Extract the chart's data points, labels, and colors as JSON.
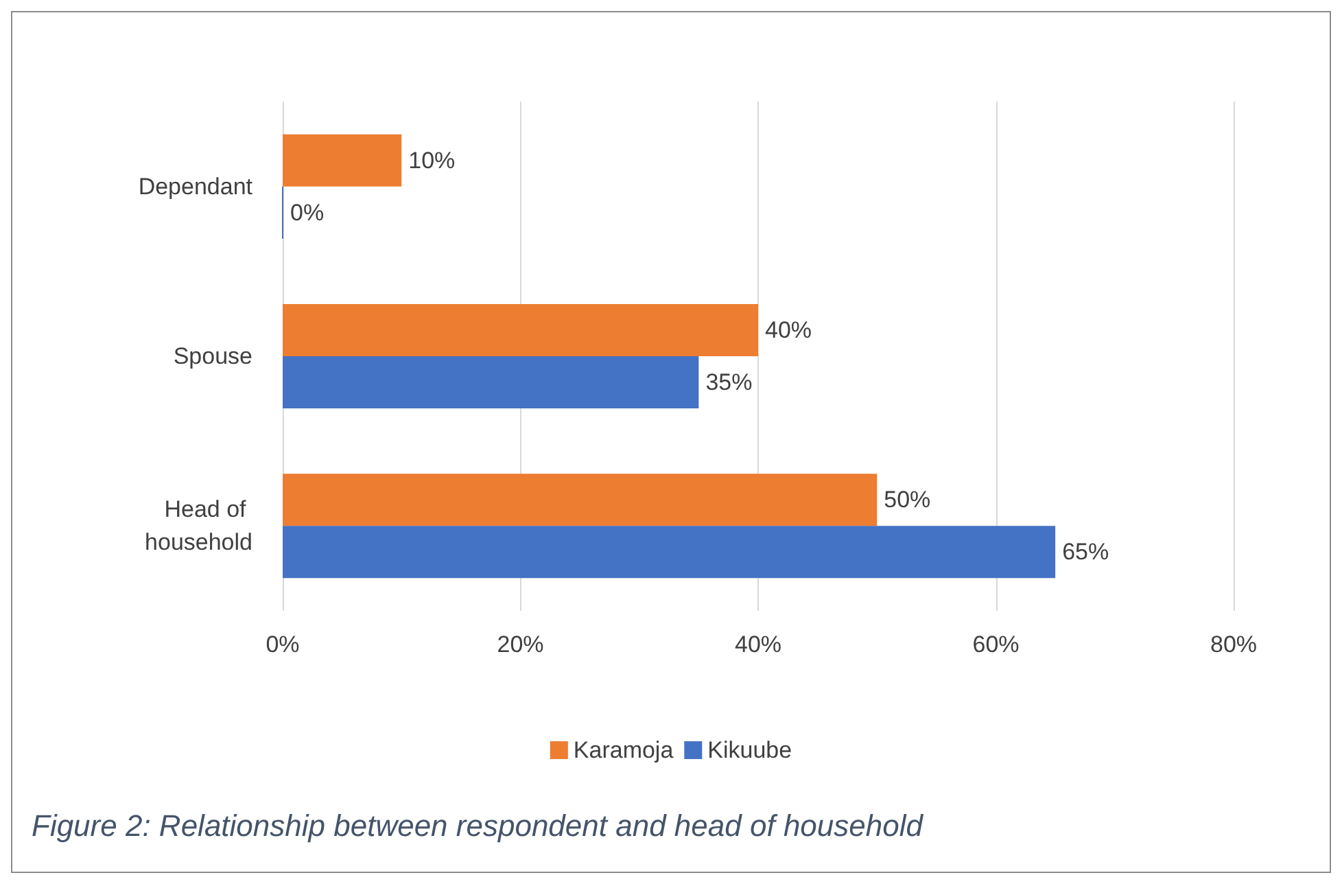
{
  "chart_data": {
    "type": "bar",
    "orientation": "horizontal",
    "categories": [
      "Dependant",
      "Spouse",
      "Head of household"
    ],
    "series": [
      {
        "name": "Karamoja",
        "color": "#ed7d31",
        "values": [
          10,
          40,
          50
        ],
        "value_labels": [
          "10%",
          "40%",
          "50%"
        ]
      },
      {
        "name": "Kikuube",
        "color": "#4472c4",
        "values": [
          0,
          35,
          65
        ],
        "value_labels": [
          "0%",
          "35%",
          "65%"
        ]
      }
    ],
    "xlim": [
      0,
      80
    ],
    "xticks": [
      {
        "value": 0,
        "label": "0%"
      },
      {
        "value": 20,
        "label": "20%"
      },
      {
        "value": 40,
        "label": "40%"
      },
      {
        "value": 60,
        "label": "60%"
      },
      {
        "value": 80,
        "label": "80%"
      }
    ],
    "grid": "x",
    "legend": "bottom",
    "annotations": [
      "Figure 2: Relationship between respondent and head of household"
    ]
  }
}
